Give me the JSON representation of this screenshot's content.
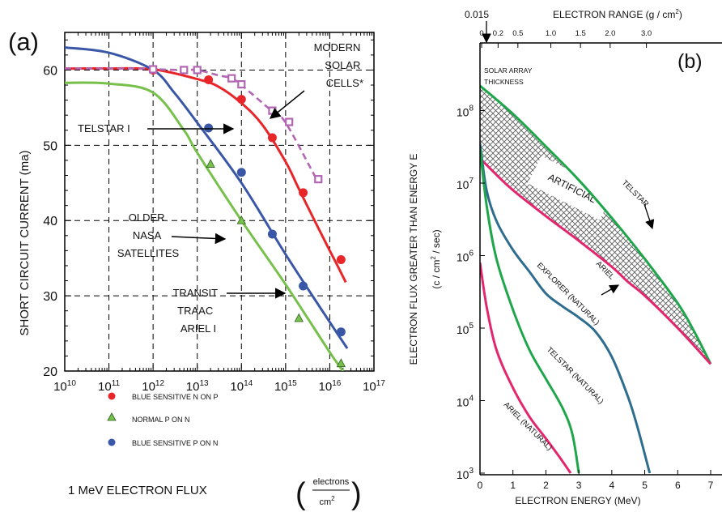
{
  "chart_data": [
    {
      "type": "line",
      "panel_label": "(a)",
      "xlabel": "1 MeV ELECTRON FLUX",
      "xunit_num": "electrons",
      "xunit_den": "cm",
      "xunit_exp": "2",
      "ylabel": "SHORT CIRCUIT CURRENT (ma)",
      "xscale": "log",
      "xlim": [
        10000000000.0,
        1e+17
      ],
      "ylim": [
        20,
        65
      ],
      "yticks": [
        "20",
        "30",
        "40",
        "50",
        "60"
      ],
      "yticks_values": [
        20,
        30,
        40,
        50,
        60
      ],
      "xticks": [
        {
          "base": "10",
          "exp": "10",
          "value": 10000000000.0
        },
        {
          "base": "10",
          "exp": "11",
          "value": 100000000000.0
        },
        {
          "base": "10",
          "exp": "12",
          "value": 1000000000000.0
        },
        {
          "base": "10",
          "exp": "13",
          "value": 10000000000000.0
        },
        {
          "base": "10",
          "exp": "14",
          "value": 100000000000000.0
        },
        {
          "base": "10",
          "exp": "15",
          "value": 1000000000000000.0
        },
        {
          "base": "10",
          "exp": "16",
          "value": 1e+16
        },
        {
          "base": "10",
          "exp": "17",
          "value": 1e+17
        }
      ],
      "grid": true,
      "series": [
        {
          "name": "BLUE SENSITIVE N ON P",
          "color": "#e8262a",
          "marker": "circle",
          "curve": [
            [
              10000000000.0,
              60.2
            ],
            [
              100000000000.0,
              60.2
            ],
            [
              1000000000000.0,
              60.1
            ],
            [
              10000000000000.0,
              58.8
            ],
            [
              30000000000000.0,
              57.8
            ],
            [
              100000000000000.0,
              55.6
            ],
            [
              300000000000000.0,
              52.7
            ],
            [
              1000000000000000.0,
              47.8
            ],
            [
              2000000000000000.0,
              44.2
            ],
            [
              5000000000000000.0,
              39.5
            ],
            [
              1e+16,
              36.0
            ],
            [
              1.5e+16,
              34.0
            ],
            [
              2.3e+16,
              31.8
            ]
          ],
          "points": [
            [
              1000000000000.0,
              60.0
            ],
            [
              18000000000000.0,
              58.7
            ],
            [
              100000000000000.0,
              56.1
            ],
            [
              500000000000000.0,
              51.0
            ],
            [
              2500000000000000.0,
              43.7
            ],
            [
              1.8e+16,
              34.8
            ]
          ]
        },
        {
          "name": "NORMAL P ON N",
          "color": "#77c04b",
          "marker": "triangle",
          "curve": [
            [
              10000000000.0,
              58.3
            ],
            [
              100000000000.0,
              58.2
            ],
            [
              1000000000000.0,
              57.0
            ],
            [
              5000000000000.0,
              52.0
            ],
            [
              10000000000000.0,
              49.0
            ],
            [
              100000000000000.0,
              40.0
            ],
            [
              1000000000000000.0,
              31.5
            ],
            [
              1e+16,
              22.5
            ],
            [
              2e+16,
              20.0
            ]
          ],
          "points": [
            [
              20000000000000.0,
              47.5
            ],
            [
              100000000000000.0,
              40.0
            ],
            [
              2000000000000000.0,
              27.0
            ],
            [
              1.8e+16,
              21.0
            ]
          ]
        },
        {
          "name": "BLUE SENSITIVE P ON N",
          "color": "#3a57a7",
          "marker": "circle",
          "curve": [
            [
              10000000000.0,
              63.0
            ],
            [
              100000000000.0,
              62.3
            ],
            [
              1000000000000.0,
              60.0
            ],
            [
              3000000000000.0,
              57.0
            ],
            [
              10000000000000.0,
              53.0
            ],
            [
              100000000000000.0,
              45.0
            ],
            [
              1000000000000000.0,
              35.5
            ],
            [
              1e+16,
              26.5
            ],
            [
              2.5e+16,
              23.0
            ]
          ],
          "points": [
            [
              18000000000000.0,
              52.3
            ],
            [
              100000000000000.0,
              46.4
            ],
            [
              500000000000000.0,
              38.2
            ],
            [
              2500000000000000.0,
              31.3
            ],
            [
              1.8e+16,
              25.2
            ]
          ]
        },
        {
          "name": "MODERN SOLAR CELLS*",
          "color": "#b266b2",
          "marker": "square",
          "dashed": true,
          "curve": [
            [
              10000000000.0,
              60.2
            ],
            [
              500000000000.0,
              60.2
            ],
            [
              1000000000000.0,
              60.1
            ],
            [
              5000000000000.0,
              60.0
            ],
            [
              10000000000000.0,
              60.0
            ],
            [
              30000000000000.0,
              59.3
            ],
            [
              60000000000000.0,
              58.9
            ],
            [
              100000000000000.0,
              58.0
            ],
            [
              500000000000000.0,
              54.5
            ],
            [
              1000000000000000.0,
              53.0
            ],
            [
              5000000000000000.0,
              45.5
            ]
          ],
          "points": [
            [
              1000000000000.0,
              60.1
            ],
            [
              5000000000000.0,
              60.0
            ],
            [
              10000000000000.0,
              60.0
            ],
            [
              60000000000000.0,
              58.9
            ],
            [
              100000000000000.0,
              58.1
            ],
            [
              500000000000000.0,
              54.6
            ],
            [
              1200000000000000.0,
              53.1
            ],
            [
              5500000000000000.0,
              45.5
            ]
          ]
        }
      ],
      "annotations": [
        {
          "id": "modern",
          "lines": [
            "MODERN",
            "SOLAR",
            "CELLS*"
          ]
        },
        {
          "id": "telstar",
          "lines": [
            "TELSTAR I"
          ]
        },
        {
          "id": "older",
          "lines": [
            "OLDER",
            "NASA",
            "SATELLITES"
          ]
        },
        {
          "id": "transit",
          "lines": [
            "TRANSIT",
            "TRAAC",
            "ARIEL I"
          ]
        }
      ],
      "legend": {
        "placement": "lower-left",
        "entries": [
          "BLUE SENSITIVE N ON P",
          "NORMAL P ON N",
          "BLUE SENSITIVE P ON N"
        ]
      }
    },
    {
      "type": "area",
      "panel_label": "(b)",
      "xlabel": "ELECTRON ENERGY (MeV)",
      "ylabel": "ELECTRON  FLUX  GREATER  THAN  ENERGY  E",
      "ylabel2_a": "(c / cm",
      "ylabel2_exp": "2",
      "ylabel2_b": " / sec)",
      "top_axis_label": "ELECTRON RANGE (g / cm",
      "top_axis_exp": "2",
      "top_axis_close": ")",
      "yscale": "log",
      "xlim": [
        0,
        7
      ],
      "ylim": [
        1000,
        500000000
      ],
      "xticks": [
        "0",
        "1",
        "2",
        "3",
        "4",
        "5",
        "6",
        "7"
      ],
      "xticks_values": [
        0,
        1,
        2,
        3,
        4,
        5,
        6,
        7
      ],
      "yticks": [
        {
          "base": "10",
          "exp": "3",
          "value": 1000.0
        },
        {
          "base": "10",
          "exp": "4",
          "value": 10000.0
        },
        {
          "base": "10",
          "exp": "5",
          "value": 100000.0
        },
        {
          "base": "10",
          "exp": "6",
          "value": 1000000.0
        },
        {
          "base": "10",
          "exp": "7",
          "value": 10000000.0
        },
        {
          "base": "10",
          "exp": "8",
          "value": 100000000.0
        }
      ],
      "top_ticks": [
        {
          "label": "0",
          "energy": 0.05
        },
        {
          "label": "0.2",
          "energy": 0.55
        },
        {
          "label": "0.5",
          "energy": 1.15
        },
        {
          "label": "1.0",
          "energy": 2.15
        },
        {
          "label": "1.5",
          "energy": 3.05
        },
        {
          "label": "2.0",
          "energy": 3.95
        },
        {
          "label": "3.0",
          "energy": 5.05
        }
      ],
      "top_extra_tick": {
        "label": "0.015",
        "energy": 0.32
      },
      "solar_array_label": [
        "SOLAR ARRAY",
        "THICKNESS"
      ],
      "region_label": "ARTIFICIAL",
      "series": [
        {
          "name": "TELSTAR",
          "color": "#1fa64a",
          "curve": [
            [
              0,
              220000000
            ],
            [
              1,
              90000000
            ],
            [
              2,
              32000000
            ],
            [
              3,
              11000000
            ],
            [
              4,
              3300000
            ],
            [
              5,
              900000
            ],
            [
              6,
              220000
            ],
            [
              6.5,
              90000
            ],
            [
              7,
              32000
            ]
          ]
        },
        {
          "name": "ARIEL",
          "color": "#e3266e",
          "curve": [
            [
              0,
              22000000
            ],
            [
              0.5,
              13000000
            ],
            [
              1,
              8000000
            ],
            [
              2,
              3500000
            ],
            [
              3,
              1600000
            ],
            [
              4,
              700000
            ],
            [
              4.5,
              430000
            ],
            [
              5,
              280000
            ],
            [
              6,
              100000
            ],
            [
              7,
              32000
            ]
          ]
        },
        {
          "name": "EXPLORER (NATURAL)",
          "color": "#2e6d8e",
          "curve": [
            [
              0,
              35000000
            ],
            [
              0.2,
              8000000
            ],
            [
              0.5,
              3000000
            ],
            [
              1,
              1200000
            ],
            [
              1.5,
              600000
            ],
            [
              2,
              300000
            ],
            [
              2.5,
              200000
            ],
            [
              3,
              140000
            ],
            [
              3.5,
              90000
            ],
            [
              4,
              40000
            ],
            [
              4.5,
              11000
            ],
            [
              4.8,
              4000
            ],
            [
              5.15,
              1000
            ]
          ]
        },
        {
          "name": "TELSTAR (NATURAL)",
          "color": "#1fa64a",
          "curve": [
            [
              0,
              30000000
            ],
            [
              0.2,
              5000000
            ],
            [
              0.5,
              900000
            ],
            [
              1,
              180000
            ],
            [
              1.5,
              50000
            ],
            [
              2,
              20000
            ],
            [
              2.5,
              8000
            ],
            [
              2.8,
              3500
            ],
            [
              3,
              1000
            ]
          ]
        },
        {
          "name": "ARIEL (NATURAL)",
          "color": "#e3266e",
          "curve": [
            [
              0,
              800000
            ],
            [
              0.2,
              200000
            ],
            [
              0.5,
              50000
            ],
            [
              1,
              15000
            ],
            [
              1.5,
              6000
            ],
            [
              2,
              3000
            ],
            [
              2.4,
              1700
            ],
            [
              2.75,
              1000
            ]
          ]
        }
      ]
    }
  ]
}
